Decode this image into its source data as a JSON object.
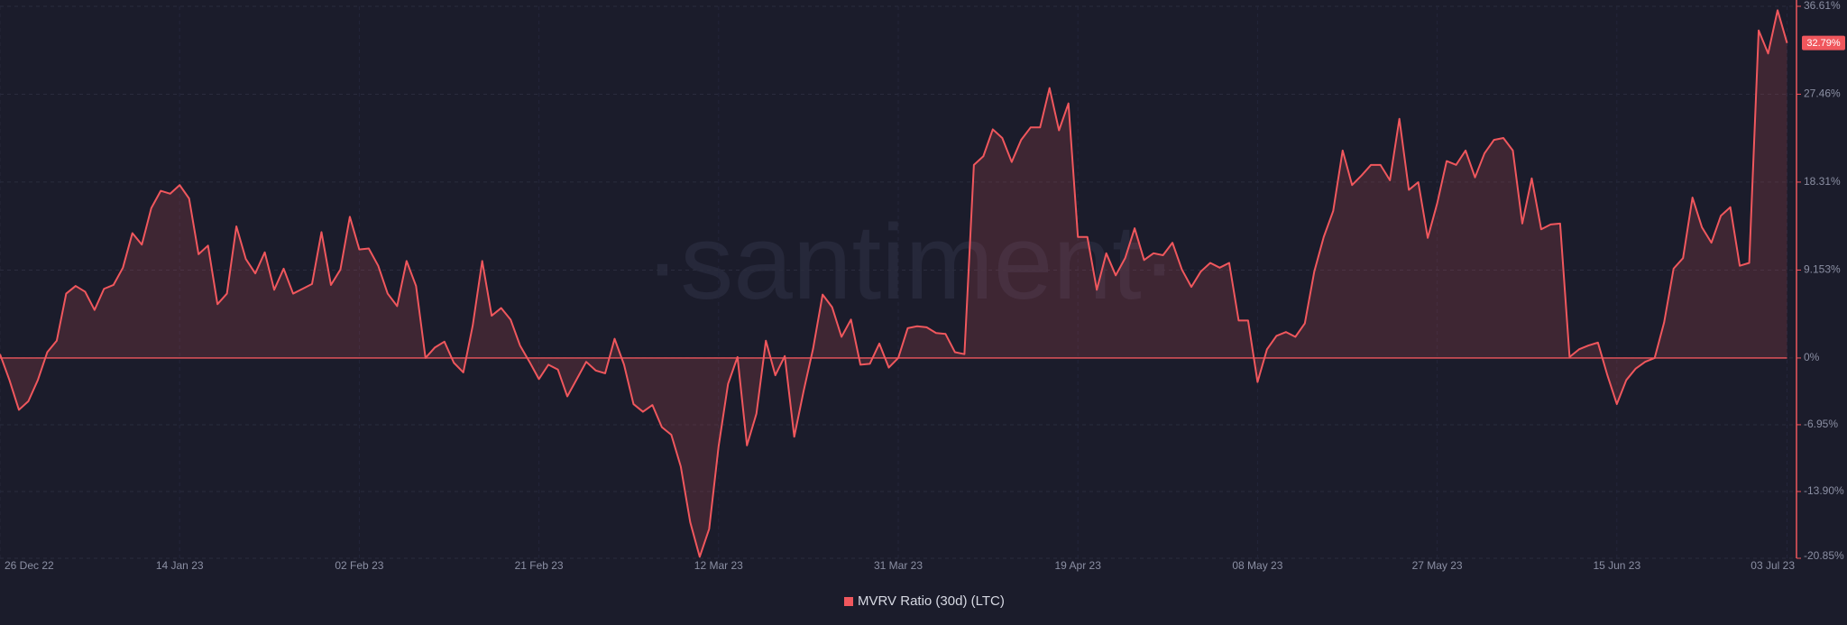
{
  "chart_data": {
    "type": "area",
    "watermark": "·santiment·",
    "series": [
      {
        "name": "MVRV Ratio (30d) (LTC)",
        "color": "#f0575d",
        "values": [
          0.4,
          -2.3,
          -5.4,
          -4.5,
          -2.3,
          0.6,
          1.8,
          6.7,
          7.5,
          6.9,
          5.0,
          7.2,
          7.6,
          9.4,
          13.0,
          11.8,
          15.6,
          17.4,
          17.1,
          18.0,
          16.6,
          10.8,
          11.7,
          5.6,
          6.7,
          13.7,
          10.3,
          8.8,
          11.0,
          7.1,
          9.3,
          6.7,
          7.2,
          7.7,
          13.1,
          7.6,
          9.2,
          14.7,
          11.3,
          11.4,
          9.6,
          6.7,
          5.4,
          10.1,
          7.5,
          0,
          1.1,
          1.7,
          -0.5,
          -1.5,
          3.4,
          10.1,
          4.4,
          5.2,
          4.0,
          1.3,
          -0.4,
          -2.2,
          -0.7,
          -1.2,
          -4.0,
          -2.2,
          -0.4,
          -1.3,
          -1.6,
          2.0,
          -0.7,
          -4.8,
          -5.6,
          -4.9,
          -7.2,
          -8.0,
          -11.3,
          -17.1,
          -20.7,
          -17.8,
          -9.2,
          -2.7,
          0.1,
          -9.1,
          -5.8,
          1.8,
          -1.8,
          0.2,
          -8.2,
          -3.4,
          1.0,
          6.6,
          5.3,
          2.2,
          4.0,
          -0.7,
          -0.6,
          1.5,
          -1.0,
          0,
          3.1,
          3.3,
          3.2,
          2.6,
          2.5,
          0.6,
          0.4,
          20.1,
          21.0,
          23.8,
          22.9,
          20.4,
          22.7,
          24.0,
          24.0,
          28.1,
          23.7,
          26.5,
          12.6,
          12.6,
          7.1,
          10.9,
          8.6,
          10.4,
          13.5,
          10.2,
          10.9,
          10.7,
          12.0,
          9.2,
          7.4,
          9.0,
          9.9,
          9.4,
          9.9,
          3.9,
          3.9,
          -2.5,
          0.9,
          2.3,
          2.7,
          2.2,
          3.6,
          9.0,
          12.6,
          15.3,
          21.6,
          18.0,
          19.0,
          20.1,
          20.1,
          18.5,
          24.9,
          17.5,
          18.3,
          12.5,
          16.1,
          20.5,
          20.1,
          21.6,
          18.8,
          21.3,
          22.7,
          22.9,
          21.6,
          14.0,
          18.7,
          13.4,
          13.9,
          14.0,
          0.1,
          0.9,
          1.3,
          1.6,
          -1.8,
          -4.8,
          -2.3,
          -1.1,
          -0.4,
          0,
          3.7,
          9.3,
          10.4,
          16.7,
          13.6,
          12.0,
          14.8,
          15.7,
          9.6,
          9.9,
          34.1,
          31.7,
          36.2,
          32.79
        ]
      }
    ],
    "x": [
      "2022-12-26",
      "2022-12-27",
      "2022-12-28",
      "2022-12-29",
      "2022-12-30",
      "2022-12-31",
      "2023-01-01",
      "2023-01-02",
      "2023-01-03",
      "2023-01-04",
      "2023-01-05",
      "2023-01-06",
      "2023-01-07",
      "2023-01-08",
      "2023-01-09",
      "2023-01-10",
      "2023-01-11",
      "2023-01-12",
      "2023-01-13",
      "2023-01-14",
      "2023-01-15",
      "2023-01-16",
      "2023-01-17",
      "2023-01-18",
      "2023-01-19",
      "2023-01-20",
      "2023-01-21",
      "2023-01-22",
      "2023-01-23",
      "2023-01-24",
      "2023-01-25",
      "2023-01-26",
      "2023-01-27",
      "2023-01-28",
      "2023-01-29",
      "2023-01-30",
      "2023-01-31",
      "2023-02-01",
      "2023-02-02",
      "2023-02-03",
      "2023-02-04",
      "2023-02-05",
      "2023-02-06",
      "2023-02-07",
      "2023-02-08",
      "2023-02-09",
      "2023-02-10",
      "2023-02-11",
      "2023-02-12",
      "2023-02-13",
      "2023-02-14",
      "2023-02-15",
      "2023-02-16",
      "2023-02-17",
      "2023-02-18",
      "2023-02-19",
      "2023-02-20",
      "2023-02-21",
      "2023-02-22",
      "2023-02-23",
      "2023-02-24",
      "2023-02-25",
      "2023-02-26",
      "2023-02-27",
      "2023-02-28",
      "2023-03-01",
      "2023-03-02",
      "2023-03-03",
      "2023-03-04",
      "2023-03-05",
      "2023-03-06",
      "2023-03-07",
      "2023-03-08",
      "2023-03-09",
      "2023-03-10",
      "2023-03-11",
      "2023-03-12",
      "2023-03-13",
      "2023-03-14",
      "2023-03-15",
      "2023-03-16",
      "2023-03-17",
      "2023-03-18",
      "2023-03-19",
      "2023-03-20",
      "2023-03-21",
      "2023-03-22",
      "2023-03-23",
      "2023-03-24",
      "2023-03-25",
      "2023-03-26",
      "2023-03-27",
      "2023-03-28",
      "2023-03-29",
      "2023-03-30",
      "2023-03-31",
      "2023-04-01",
      "2023-04-02",
      "2023-04-03",
      "2023-04-04",
      "2023-04-05",
      "2023-04-06",
      "2023-04-07",
      "2023-04-08",
      "2023-04-09",
      "2023-04-10",
      "2023-04-11",
      "2023-04-12",
      "2023-04-13",
      "2023-04-14",
      "2023-04-15",
      "2023-04-16",
      "2023-04-17",
      "2023-04-18",
      "2023-04-19",
      "2023-04-20",
      "2023-04-21",
      "2023-04-22",
      "2023-04-23",
      "2023-04-24",
      "2023-04-25",
      "2023-04-26",
      "2023-04-27",
      "2023-04-28",
      "2023-04-29",
      "2023-04-30",
      "2023-05-01",
      "2023-05-02",
      "2023-05-03",
      "2023-05-04",
      "2023-05-05",
      "2023-05-06",
      "2023-05-07",
      "2023-05-08",
      "2023-05-09",
      "2023-05-10",
      "2023-05-11",
      "2023-05-12",
      "2023-05-13",
      "2023-05-14",
      "2023-05-15",
      "2023-05-16",
      "2023-05-17",
      "2023-05-18",
      "2023-05-19",
      "2023-05-20",
      "2023-05-21",
      "2023-05-22",
      "2023-05-23",
      "2023-05-24",
      "2023-05-25",
      "2023-05-26",
      "2023-05-27",
      "2023-05-28",
      "2023-05-29",
      "2023-05-30",
      "2023-05-31",
      "2023-06-01",
      "2023-06-02",
      "2023-06-03",
      "2023-06-04",
      "2023-06-05",
      "2023-06-06",
      "2023-06-07",
      "2023-06-08",
      "2023-06-09",
      "2023-06-10",
      "2023-06-11",
      "2023-06-12",
      "2023-06-13",
      "2023-06-14",
      "2023-06-15",
      "2023-06-16",
      "2023-06-17",
      "2023-06-18",
      "2023-06-19",
      "2023-06-20",
      "2023-06-21",
      "2023-06-22",
      "2023-06-23",
      "2023-06-24",
      "2023-06-25",
      "2023-06-26",
      "2023-06-27",
      "2023-06-28",
      "2023-06-29",
      "2023-06-30",
      "2023-07-01",
      "2023-07-02",
      "2023-07-03"
    ],
    "xlim": [
      "2022-12-26",
      "2023-07-04"
    ],
    "xticks": [
      {
        "value": "2022-12-26",
        "label": "26 Dec 22"
      },
      {
        "value": "2023-01-14",
        "label": "14 Jan 23"
      },
      {
        "value": "2023-02-02",
        "label": "02 Feb 23"
      },
      {
        "value": "2023-02-21",
        "label": "21 Feb 23"
      },
      {
        "value": "2023-03-12",
        "label": "12 Mar 23"
      },
      {
        "value": "2023-03-31",
        "label": "31 Mar 23"
      },
      {
        "value": "2023-04-19",
        "label": "19 Apr 23"
      },
      {
        "value": "2023-05-08",
        "label": "08 May 23"
      },
      {
        "value": "2023-05-27",
        "label": "27 May 23"
      },
      {
        "value": "2023-06-15",
        "label": "15 Jun 23"
      },
      {
        "value": "2023-07-03",
        "label": "03 Jul 23"
      }
    ],
    "ylim": [
      -20.85,
      36.61
    ],
    "yticks": [
      {
        "value": 36.61,
        "label": "36.61%"
      },
      {
        "value": 27.46,
        "label": "27.46%"
      },
      {
        "value": 18.31,
        "label": "18.31%"
      },
      {
        "value": 9.153,
        "label": "9.153%"
      },
      {
        "value": 0,
        "label": "0%"
      },
      {
        "value": -6.95,
        "label": "-6.95%"
      },
      {
        "value": -13.9,
        "label": "-13.90%"
      },
      {
        "value": -20.85,
        "label": "-20.85%"
      }
    ],
    "current_value": {
      "value": 32.79,
      "label": "32.79%"
    },
    "grid": true,
    "legend": "bottom"
  }
}
